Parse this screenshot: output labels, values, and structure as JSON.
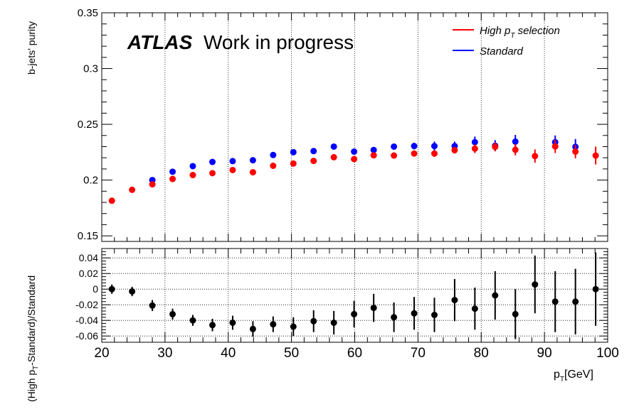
{
  "figure": {
    "atlas_label": "ATLAS",
    "status_label": "Work in progress"
  },
  "legend": {
    "position": "top-right",
    "entries": [
      {
        "text_main": "High p",
        "text_sub": "T",
        "text_rest": " selection",
        "color": "#ff0000"
      },
      {
        "text_main": "Standard",
        "text_sub": "",
        "text_rest": "",
        "color": "#0000ff"
      }
    ]
  },
  "chart_data": [
    {
      "type": "scatter",
      "ylabel": "b-jets' purity",
      "xlim": [
        20,
        100
      ],
      "ylim": [
        0.145,
        0.35
      ],
      "y_ticks": [
        "0.15",
        "0.2",
        "0.25",
        "0.3",
        "0.35"
      ],
      "y_tick_values": [
        0.15,
        0.2,
        0.25,
        0.3,
        0.35
      ],
      "grid": "vertical dotted",
      "x": [
        21.6,
        24.8,
        28.0,
        31.2,
        34.4,
        37.5,
        40.7,
        43.9,
        47.1,
        50.3,
        53.5,
        56.7,
        59.9,
        63.0,
        66.2,
        69.4,
        72.6,
        75.8,
        79.0,
        82.2,
        85.4,
        88.5,
        91.7,
        94.9,
        98.1
      ],
      "series": [
        {
          "name": "Standard",
          "color": "#0000ff",
          "y": [
            null,
            null,
            0.2,
            0.2075,
            0.2125,
            0.2163,
            0.217,
            0.2178,
            0.2225,
            0.225,
            0.226,
            0.23,
            0.2255,
            0.227,
            0.23,
            0.2305,
            0.2305,
            0.2305,
            0.234,
            0.2308,
            0.2345,
            null,
            0.234,
            0.2298,
            null
          ],
          "err": [
            null,
            null,
            0.001,
            0.001,
            0.001,
            0.001,
            0.001,
            0.001,
            0.001,
            0.0015,
            0.0015,
            0.002,
            0.002,
            0.002,
            0.002,
            0.003,
            0.004,
            0.004,
            0.005,
            0.005,
            0.006,
            null,
            0.006,
            0.007,
            null
          ]
        },
        {
          "name": "High p_T selection",
          "color": "#ff0000",
          "y": [
            0.1815,
            0.1913,
            0.1962,
            0.201,
            0.2045,
            0.2062,
            0.209,
            0.207,
            0.2128,
            0.2148,
            0.2172,
            0.2205,
            0.2188,
            0.2222,
            0.222,
            0.2238,
            0.2238,
            0.2268,
            0.2282,
            0.2298,
            0.2272,
            0.2215,
            0.2302,
            0.2255,
            0.222
          ],
          "err": [
            0.001,
            0.001,
            0.001,
            0.001,
            0.001,
            0.001,
            0.001,
            0.001,
            0.001,
            0.001,
            0.001,
            0.0015,
            0.0015,
            0.002,
            0.002,
            0.002,
            0.003,
            0.003,
            0.004,
            0.004,
            0.005,
            0.006,
            0.006,
            0.006,
            0.008
          ]
        }
      ]
    },
    {
      "type": "scatter",
      "xlabel": "p_T[GeV]",
      "ylabel": "(High p_T-Standard)/Standard",
      "xlim": [
        20,
        100
      ],
      "ylim": [
        -0.068,
        0.052
      ],
      "x_ticks": [
        "20",
        "30",
        "40",
        "50",
        "60",
        "70",
        "80",
        "90",
        "100"
      ],
      "x_tick_values": [
        20,
        30,
        40,
        50,
        60,
        70,
        80,
        90,
        100
      ],
      "y_ticks": [
        "0.04",
        "0.02",
        "0",
        "-0.02",
        "-0.04",
        "-0.06"
      ],
      "y_tick_values": [
        0.04,
        0.02,
        0,
        -0.02,
        -0.04,
        -0.06
      ],
      "grid": "both dotted",
      "x": [
        21.6,
        24.8,
        28.0,
        31.2,
        34.4,
        37.5,
        40.7,
        43.9,
        47.1,
        50.3,
        53.5,
        56.7,
        59.9,
        63.0,
        66.2,
        69.4,
        72.6,
        75.8,
        79.0,
        82.2,
        85.4,
        88.5,
        91.7,
        94.9,
        98.1
      ],
      "series": [
        {
          "name": "",
          "color": "#000000",
          "y": [
            0.0,
            -0.003,
            -0.021,
            -0.032,
            -0.04,
            -0.046,
            -0.043,
            -0.051,
            -0.045,
            -0.048,
            -0.041,
            -0.043,
            -0.032,
            -0.024,
            -0.036,
            -0.031,
            -0.033,
            -0.014,
            -0.025,
            -0.008,
            -0.032,
            0.006,
            -0.016,
            -0.016,
            0.0
          ],
          "err": [
            0.006,
            0.006,
            0.007,
            0.007,
            0.007,
            0.008,
            0.009,
            0.01,
            0.01,
            0.012,
            0.014,
            0.015,
            0.017,
            0.018,
            0.019,
            0.021,
            0.022,
            0.027,
            0.027,
            0.031,
            0.032,
            0.037,
            0.039,
            0.042,
            0.047
          ]
        }
      ]
    }
  ]
}
